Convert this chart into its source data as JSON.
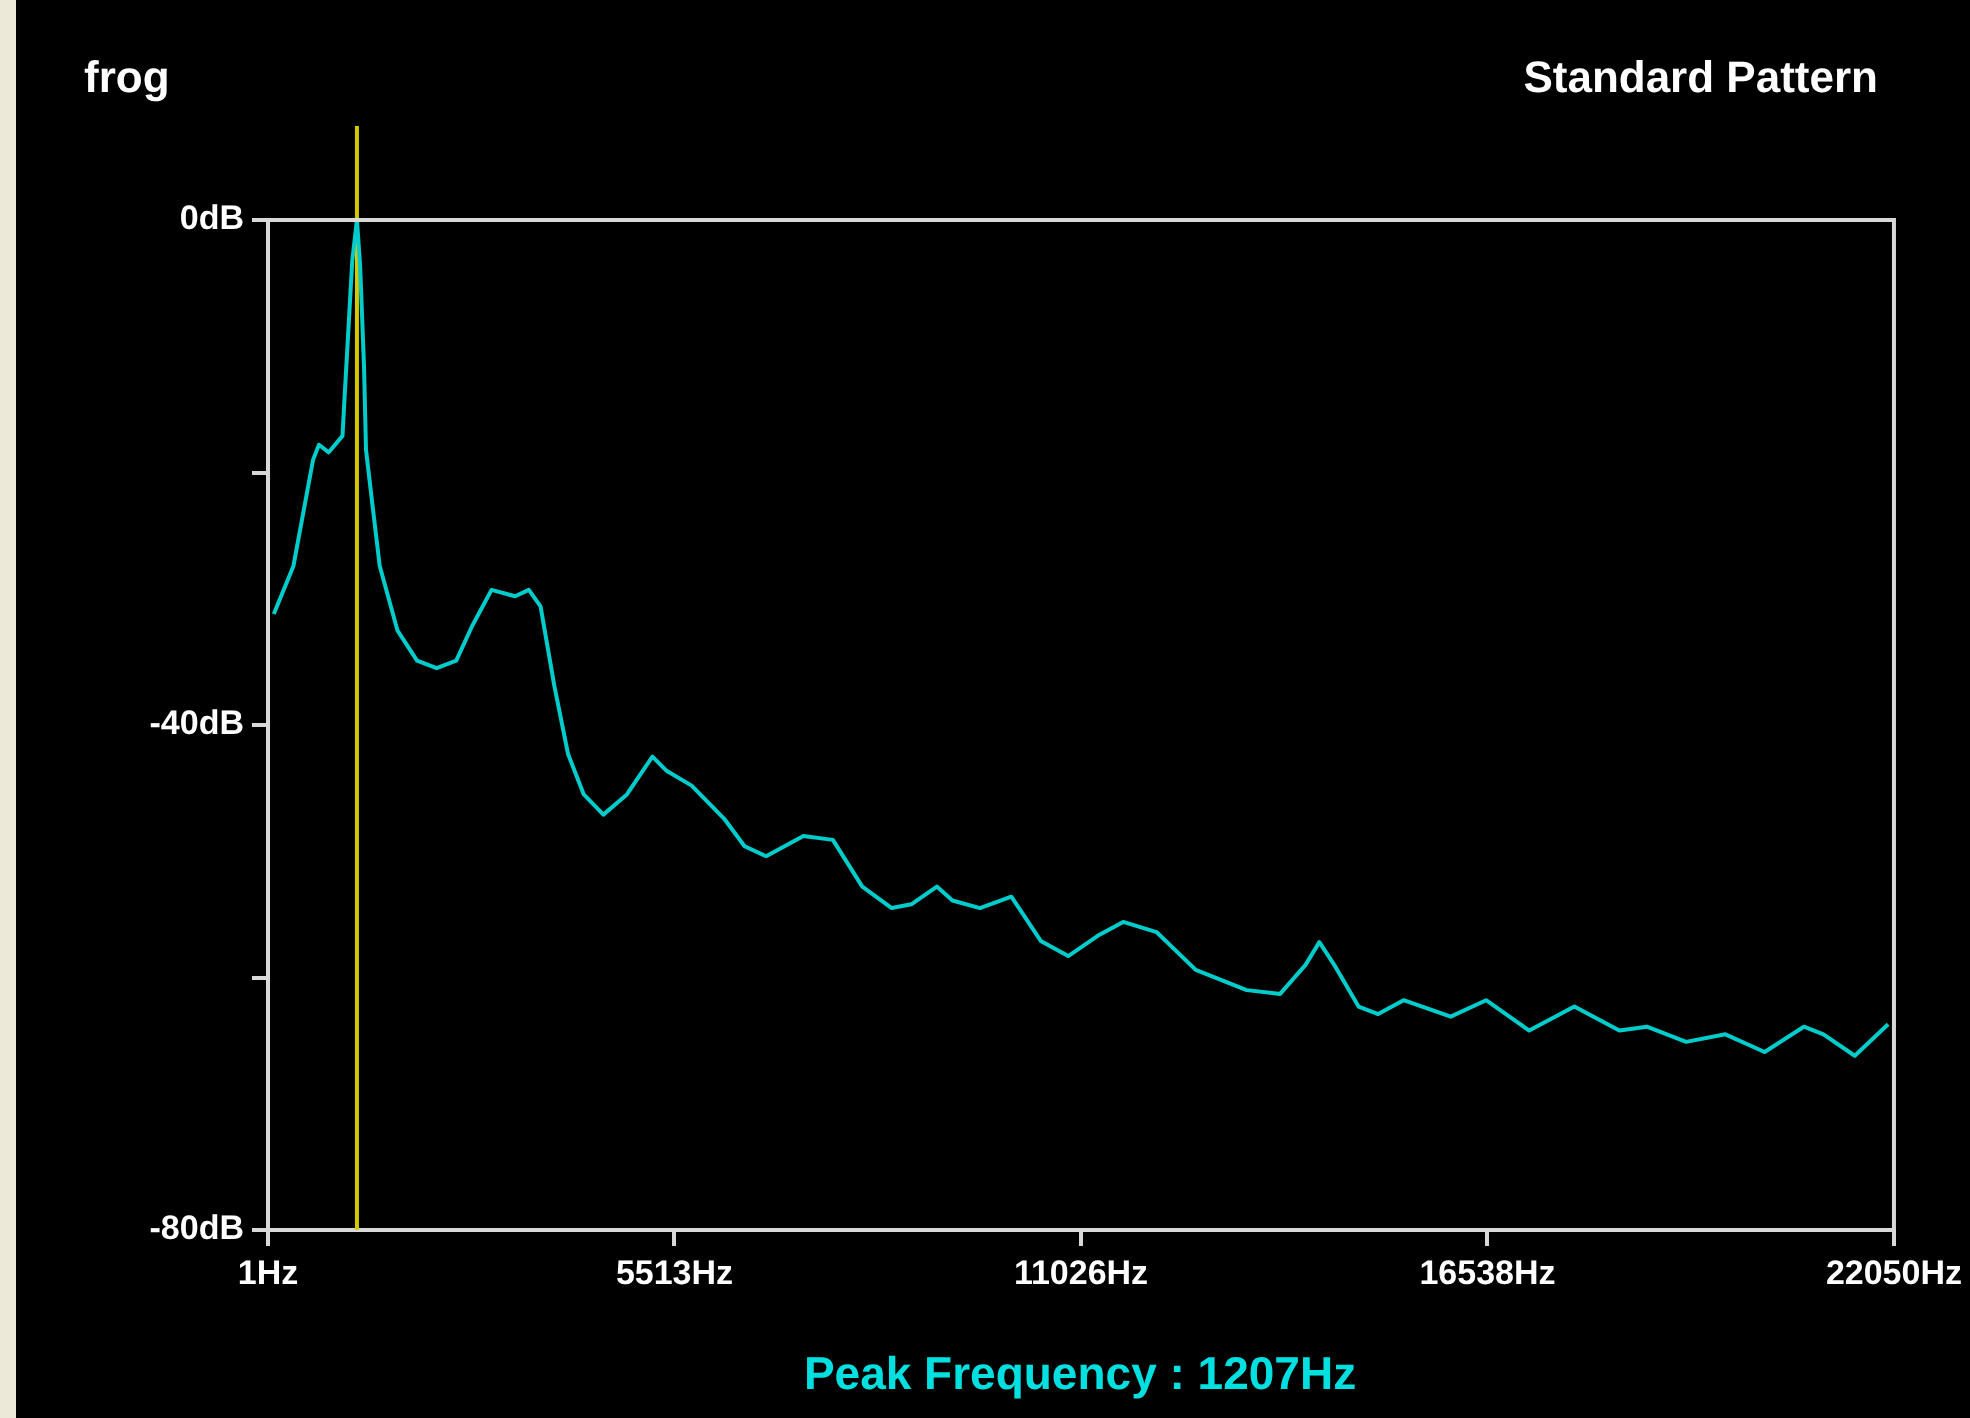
{
  "chart_data": {
    "type": "line",
    "title": "frog",
    "subtitle": "Standard Pattern",
    "annotations": [
      "Peak Frequency : 1207Hz"
    ],
    "x": [
      80,
      346,
      612,
      692,
      825,
      1011,
      1037,
      1091,
      1144,
      1207,
      1250,
      1303,
      1330,
      1410,
      1516,
      1756,
      2022,
      2288,
      2554,
      2766,
      3032,
      3352,
      3538,
      3697,
      3884,
      4070,
      4283,
      4549,
      4868,
      5214,
      5400,
      5746,
      6198,
      6464,
      6756,
      7262,
      7661,
      8060,
      8459,
      8725,
      9071,
      9283,
      9656,
      10081,
      10480,
      10853,
      11252,
      11598,
      12050,
      12582,
      13273,
      13726,
      14071,
      14258,
      14471,
      14790,
      15056,
      15401,
      16040,
      16519,
      17104,
      17716,
      18327,
      18700,
      19232,
      19764,
      20296,
      20828,
      21094,
      21519,
      21971
    ],
    "series": [
      {
        "color": "#00cccc",
        "values": [
          -31.2,
          -27.4,
          -19.0,
          -17.8,
          -18.4,
          -17.1,
          -14.3,
          -8.7,
          -3.2,
          0,
          -3.6,
          -11.6,
          -18.2,
          -22.2,
          -27.4,
          -32.5,
          -34.9,
          -35.5,
          -34.9,
          -32.2,
          -29.3,
          -29.8,
          -29.3,
          -30.6,
          -36.9,
          -42.3,
          -45.5,
          -47.1,
          -45.5,
          -42.5,
          -43.6,
          -44.8,
          -47.5,
          -49.6,
          -50.4,
          -48.8,
          -49.1,
          -52.8,
          -54.5,
          -54.2,
          -52.8,
          -53.9,
          -54.5,
          -53.6,
          -57.1,
          -58.3,
          -56.7,
          -55.6,
          -56.4,
          -59.4,
          -61.0,
          -61.3,
          -59.0,
          -57.2,
          -59.1,
          -62.3,
          -62.9,
          -61.8,
          -63.1,
          -61.8,
          -64.2,
          -62.3,
          -64.2,
          -63.9,
          -65.1,
          -64.5,
          -65.9,
          -63.9,
          -64.5,
          -66.2,
          -63.7
        ]
      }
    ],
    "xlim": [
      1,
      22050
    ],
    "xticks": [
      {
        "value": 1,
        "label": "1Hz"
      },
      {
        "value": 5513,
        "label": "5513Hz"
      },
      {
        "value": 11026,
        "label": "11026Hz"
      },
      {
        "value": 16538,
        "label": "16538Hz"
      },
      {
        "value": 22050,
        "label": "22050Hz"
      }
    ],
    "ylim": [
      -80,
      0
    ],
    "yticks": [
      {
        "value": 0,
        "label": "0dB"
      },
      {
        "value": -20,
        "label": null
      },
      {
        "value": -40,
        "label": "-40dB"
      },
      {
        "value": -60,
        "label": null
      },
      {
        "value": -80,
        "label": "-80dB"
      }
    ],
    "ref_lines": [
      {
        "axis": "x",
        "value": 1207,
        "color": "#d4c800"
      }
    ],
    "grid": false,
    "legend": false,
    "marker": "none",
    "line_style": "solid"
  }
}
